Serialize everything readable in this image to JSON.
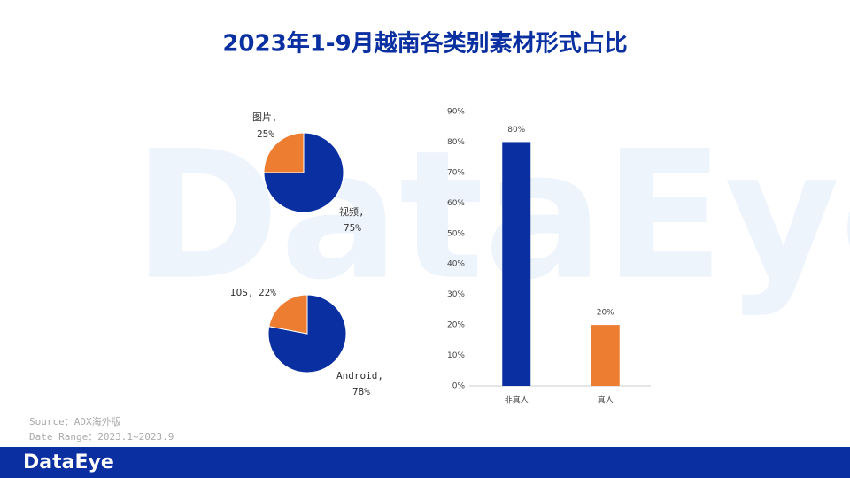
{
  "title": "2023年1-9月越南各类别素材形式占比",
  "watermark": "DataEye",
  "source": "Source：ADX海外版",
  "date_range": "Date Range：2023.1~2023.9",
  "logo": "DataEye",
  "chart_data": [
    {
      "type": "pie",
      "categories": [
        "图片,",
        "视频,"
      ],
      "values": [
        25,
        75
      ],
      "value_labels": [
        "25%",
        "75%"
      ],
      "colors": [
        "#ed7d31",
        "#0a2fa0"
      ]
    },
    {
      "type": "pie",
      "categories": [
        "IOS,",
        "Android,"
      ],
      "values": [
        22,
        78
      ],
      "value_labels": [
        "22%",
        "78%"
      ],
      "colors": [
        "#ed7d31",
        "#0a2fa0"
      ]
    },
    {
      "type": "bar",
      "categories": [
        "非真人",
        "真人"
      ],
      "values": [
        80,
        20
      ],
      "value_labels": [
        "80%",
        "20%"
      ],
      "colors": [
        "#0a2fa0",
        "#ed7d31"
      ],
      "ylim": [
        0,
        90
      ],
      "yticks": [
        {
          "value": 0,
          "label": "0%"
        },
        {
          "value": 10,
          "label": "10%"
        },
        {
          "value": 20,
          "label": "20%"
        },
        {
          "value": 30,
          "label": "30%"
        },
        {
          "value": 40,
          "label": "40%"
        },
        {
          "value": 50,
          "label": "50%"
        },
        {
          "value": 60,
          "label": "60%"
        },
        {
          "value": 70,
          "label": "70%"
        },
        {
          "value": 80,
          "label": "80%"
        },
        {
          "value": 90,
          "label": "90%"
        }
      ]
    }
  ]
}
